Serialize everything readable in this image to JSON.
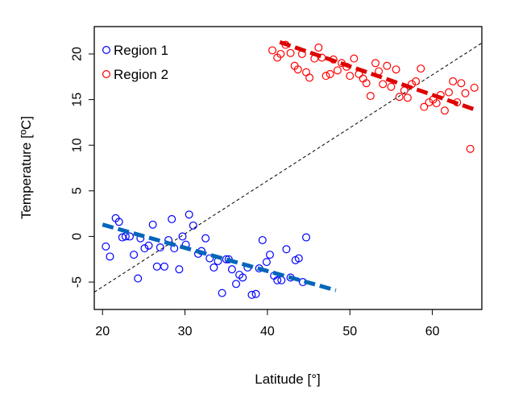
{
  "chart_data": {
    "type": "scatter",
    "title": "",
    "xlabel": "Latitude [°]",
    "ylabel": "Temperature [ºC]",
    "xlim": [
      19,
      66
    ],
    "ylim": [
      -8,
      23
    ],
    "x_ticks": [
      20,
      30,
      40,
      50,
      60
    ],
    "y_ticks": [
      -5,
      0,
      5,
      10,
      15,
      20
    ],
    "grid": false,
    "legend_position": "top-left",
    "series": [
      {
        "name": "Region 1",
        "color": "#0000ff",
        "marker": "open-circle",
        "x": [
          20.4,
          20.9,
          21.6,
          22.0,
          22.4,
          22.8,
          23.3,
          23.8,
          24.3,
          24.6,
          25.1,
          25.6,
          26.1,
          26.6,
          27.0,
          27.5,
          28.0,
          28.4,
          28.7,
          29.3,
          29.7,
          30.1,
          30.5,
          31.0,
          31.6,
          32.0,
          32.5,
          33.0,
          33.5,
          34.0,
          34.5,
          35.0,
          35.3,
          35.7,
          36.2,
          36.6,
          37.0,
          37.6,
          38.1,
          38.6,
          39.0,
          39.4,
          39.9,
          40.3,
          40.8,
          41.2,
          41.7,
          42.3,
          42.8,
          43.4,
          43.8,
          44.3,
          44.7
        ],
        "y": [
          -1.1,
          -2.2,
          2.0,
          1.6,
          -0.1,
          0.0,
          0.0,
          -2.0,
          -4.6,
          -0.2,
          -1.3,
          -1.0,
          1.3,
          -3.3,
          -1.2,
          -3.3,
          -0.4,
          1.9,
          -1.3,
          -3.6,
          0.0,
          -0.9,
          2.4,
          1.2,
          -1.9,
          -1.6,
          -0.2,
          -2.4,
          -3.4,
          -2.7,
          -6.2,
          -2.5,
          -2.5,
          -3.6,
          -5.2,
          -4.2,
          -4.5,
          -3.4,
          -6.4,
          -6.3,
          -3.5,
          -0.4,
          -2.8,
          -2.0,
          -4.3,
          -4.8,
          -4.8,
          -1.4,
          -4.5,
          -2.6,
          -2.4,
          -5.0,
          -0.1
        ],
        "trend": {
          "x": [
            20,
            48.3
          ],
          "y": [
            1.3,
            -5.9
          ]
        }
      },
      {
        "name": "Region 2",
        "color": "#ff0000",
        "marker": "open-circle",
        "x": [
          40.6,
          41.2,
          41.6,
          42.2,
          42.8,
          43.3,
          43.7,
          44.2,
          44.7,
          45.1,
          45.7,
          46.2,
          46.6,
          47.1,
          47.6,
          48.0,
          48.5,
          49.0,
          49.6,
          50.0,
          50.5,
          51.1,
          51.6,
          52.0,
          52.5,
          53.1,
          53.5,
          54.0,
          54.5,
          55.0,
          55.6,
          56.0,
          56.6,
          57.0,
          57.5,
          58.0,
          58.6,
          59.0,
          59.6,
          60.1,
          60.5,
          61.0,
          61.5,
          62.0,
          62.5,
          63.0,
          63.5,
          64.0,
          64.6,
          65.1
        ],
        "y": [
          20.4,
          19.6,
          20.0,
          21.0,
          20.1,
          18.7,
          18.3,
          20.0,
          18.0,
          17.4,
          19.5,
          20.7,
          19.6,
          17.6,
          17.8,
          19.4,
          18.2,
          19.0,
          18.6,
          17.6,
          19.5,
          17.8,
          17.3,
          16.8,
          15.4,
          19.0,
          18.1,
          16.7,
          18.7,
          16.4,
          18.3,
          15.3,
          16.0,
          15.2,
          16.7,
          17.0,
          18.4,
          14.2,
          14.7,
          15.0,
          14.6,
          15.5,
          13.8,
          15.8,
          17.0,
          14.7,
          16.8,
          15.7,
          9.6,
          16.3
        ],
        "trend": {
          "x": [
            41.5,
            65.5
          ],
          "y": [
            21.3,
            13.8
          ]
        }
      }
    ],
    "reference_line": {
      "style": "dashed",
      "color": "#000000",
      "x": [
        19,
        66
      ],
      "y": [
        -6.1,
        21.2
      ]
    }
  }
}
